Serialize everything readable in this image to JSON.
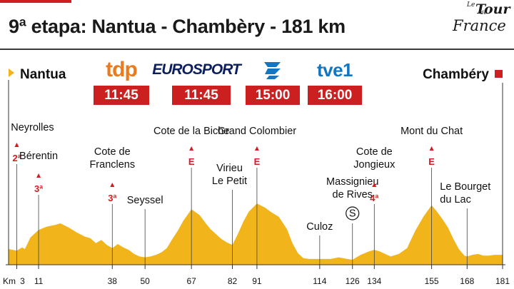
{
  "header": {
    "title": "9ª etapa: Nantua - Chambèry - 181 km",
    "logo": {
      "le": "Le",
      "tour": "Tour",
      "de": "de",
      "france": "France"
    }
  },
  "route": {
    "start": "Nantua",
    "finish": "Chambéry"
  },
  "broadcasters": [
    {
      "name": "tdp",
      "time": "11:45",
      "color": "#e97a1d"
    },
    {
      "name": "EUROSPORT",
      "time": "11:45",
      "color": "#0b1e5e"
    },
    {
      "name": "Telemadrid",
      "time": "15:00",
      "color": "#1276c2"
    },
    {
      "name": "tve1",
      "time": "16:00",
      "color": "#1276c2"
    }
  ],
  "colors": {
    "accent": "#cc1f1f",
    "profile_fill": "#f2b41b",
    "text": "#111111"
  },
  "chart_data": {
    "type": "area",
    "title": "9ª etapa: Nantua - Chambèry - 181 km",
    "xlabel": "Km",
    "ylabel": "",
    "x_unit_label": "Km",
    "xlim": [
      0,
      181
    ],
    "ylim": [
      0,
      100
    ],
    "ticks": [
      3,
      11,
      38,
      50,
      67,
      82,
      91,
      114,
      126,
      134,
      155,
      168,
      181
    ],
    "profile": [
      [
        0,
        19
      ],
      [
        3,
        17
      ],
      [
        5,
        21
      ],
      [
        6,
        19
      ],
      [
        8,
        33
      ],
      [
        11,
        42
      ],
      [
        14,
        46
      ],
      [
        17,
        48
      ],
      [
        19,
        50
      ],
      [
        22,
        45
      ],
      [
        25,
        39
      ],
      [
        28,
        34
      ],
      [
        30,
        32
      ],
      [
        32,
        26
      ],
      [
        34,
        30
      ],
      [
        36,
        24
      ],
      [
        38,
        20
      ],
      [
        40,
        25
      ],
      [
        42,
        21
      ],
      [
        44,
        18
      ],
      [
        46,
        13
      ],
      [
        48,
        10
      ],
      [
        50,
        9
      ],
      [
        52,
        10
      ],
      [
        54,
        12
      ],
      [
        56,
        15
      ],
      [
        58,
        20
      ],
      [
        60,
        31
      ],
      [
        62,
        41
      ],
      [
        64,
        53
      ],
      [
        67,
        67
      ],
      [
        70,
        60
      ],
      [
        72,
        51
      ],
      [
        74,
        43
      ],
      [
        76,
        37
      ],
      [
        78,
        31
      ],
      [
        80,
        27
      ],
      [
        82,
        24
      ],
      [
        84,
        37
      ],
      [
        86,
        52
      ],
      [
        88,
        64
      ],
      [
        91,
        74
      ],
      [
        94,
        69
      ],
      [
        96,
        64
      ],
      [
        99,
        58
      ],
      [
        102,
        43
      ],
      [
        104,
        26
      ],
      [
        106,
        14
      ],
      [
        108,
        8
      ],
      [
        110,
        7
      ],
      [
        114,
        7
      ],
      [
        118,
        7
      ],
      [
        121,
        9
      ],
      [
        124,
        7
      ],
      [
        126,
        6
      ],
      [
        129,
        12
      ],
      [
        132,
        16
      ],
      [
        134,
        18
      ],
      [
        136,
        16
      ],
      [
        138,
        13
      ],
      [
        140,
        10
      ],
      [
        143,
        13
      ],
      [
        146,
        20
      ],
      [
        149,
        41
      ],
      [
        152,
        58
      ],
      [
        155,
        72
      ],
      [
        157,
        64
      ],
      [
        159,
        55
      ],
      [
        161,
        45
      ],
      [
        163,
        31
      ],
      [
        165,
        19
      ],
      [
        167,
        11
      ],
      [
        168,
        10
      ],
      [
        170,
        12
      ],
      [
        172,
        13
      ],
      [
        174,
        11
      ],
      [
        176,
        11
      ],
      [
        178,
        12
      ],
      [
        181,
        12
      ]
    ],
    "points": [
      {
        "km": 3,
        "name": "Neyrolles",
        "cat": "2ª"
      },
      {
        "km": 11,
        "name": "Bérentin",
        "cat": "3ª"
      },
      {
        "km": 38,
        "name": "Cote de Franclens",
        "cat": "3ª"
      },
      {
        "km": 50,
        "name": "Seyssel"
      },
      {
        "km": 67,
        "name": "Cote de la Biche",
        "cat": "E"
      },
      {
        "km": 82,
        "name": "Virieu Le Petit"
      },
      {
        "km": 91,
        "name": "Grand Colombier",
        "cat": "E"
      },
      {
        "km": 114,
        "name": "Culoz"
      },
      {
        "km": 126,
        "name": "Massignieu de Rives",
        "sprint": "S"
      },
      {
        "km": 134,
        "name": "Cote de Jongieux",
        "cat": "4ª"
      },
      {
        "km": 155,
        "name": "Mont du Chat",
        "cat": "E"
      },
      {
        "km": 168,
        "name": "Le Bourget du Lac"
      }
    ]
  }
}
